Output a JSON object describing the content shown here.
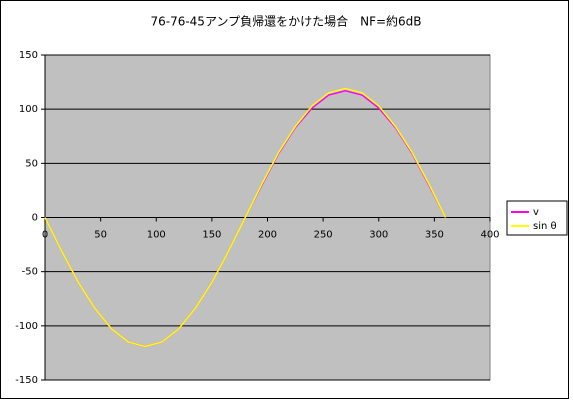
{
  "chart_data": {
    "type": "line",
    "title": "76-76-45アンプ負帰還をかけた場合　NF=約6dB",
    "x": [
      0,
      15,
      30,
      45,
      60,
      75,
      90,
      105,
      120,
      135,
      150,
      165,
      180,
      195,
      210,
      225,
      240,
      255,
      270,
      285,
      300,
      315,
      330,
      345,
      360
    ],
    "series": [
      {
        "name": "v",
        "color": "#ff00ff",
        "values": [
          0,
          -31,
          -60,
          -84,
          -103,
          -115,
          -119,
          -115,
          -103,
          -84,
          -60,
          -31,
          0,
          30,
          59,
          83,
          101,
          113,
          117,
          113,
          101,
          83,
          59,
          30,
          0
        ]
      },
      {
        "name": "sin θ",
        "color": "#ffff00",
        "values": [
          0,
          -31,
          -60,
          -84,
          -103,
          -115,
          -119,
          -115,
          -103,
          -84,
          -60,
          -31,
          0,
          31,
          60,
          84,
          103,
          115,
          119,
          115,
          103,
          84,
          60,
          31,
          0
        ]
      }
    ],
    "xlim": [
      0,
      400
    ],
    "xticks": [
      0,
      50,
      100,
      150,
      200,
      250,
      300,
      350,
      400
    ],
    "ylim": [
      -150,
      150
    ],
    "yticks": [
      -150,
      -100,
      -50,
      0,
      50,
      100,
      150
    ],
    "grid": true,
    "legend": "right"
  }
}
